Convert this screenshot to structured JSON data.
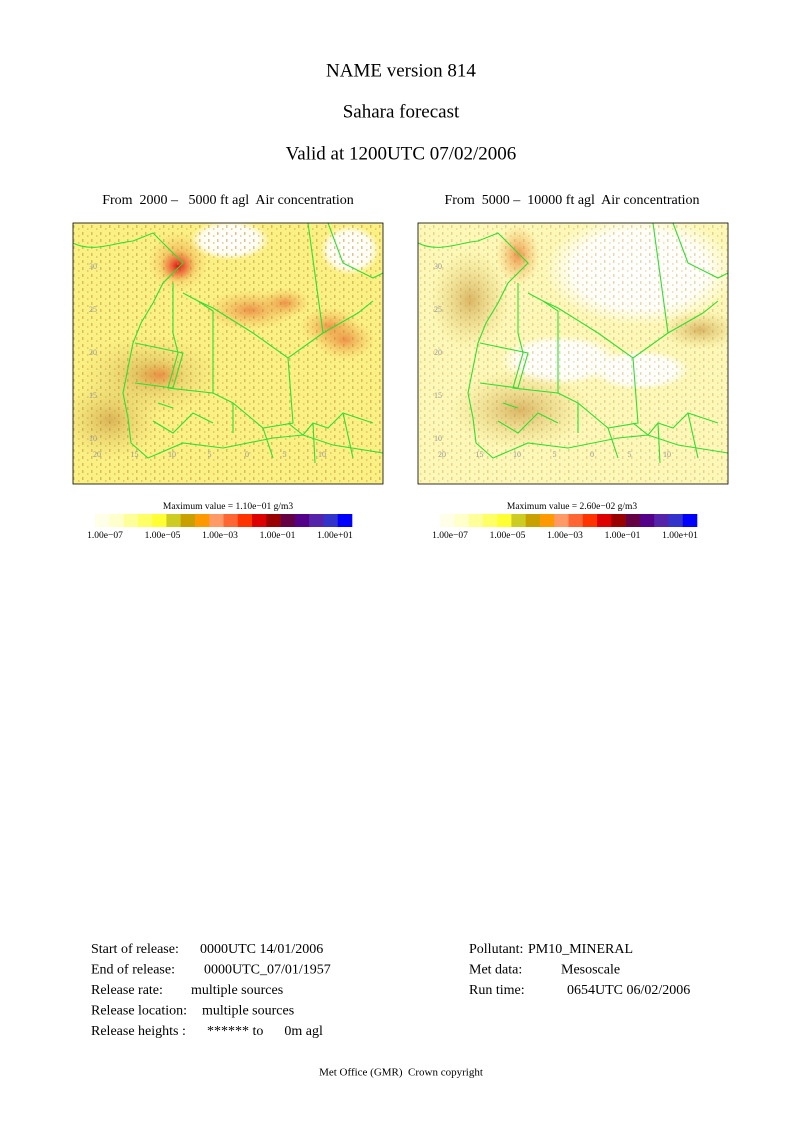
{
  "header": {
    "title": "NAME version 814",
    "subtitle": "Sahara forecast",
    "valid": "Valid at 1200UTC 07/02/2006"
  },
  "colorbar_colors": [
    "#ffffe8",
    "#ffffcc",
    "#ffff99",
    "#ffff66",
    "#ffff33",
    "#cccc22",
    "#c8a000",
    "#ff9900",
    "#ff9966",
    "#ff6633",
    "#ff3300",
    "#dd0000",
    "#990000",
    "#660044",
    "#550088",
    "#5522aa",
    "#3333cc",
    "#0000ff"
  ],
  "panels": [
    {
      "title": "From  2000 –   5000 ft agl  Air concentration",
      "max_value": "Maximum value = 1.10e−01 g/m3",
      "colorbar_labels": [
        "1.00e−07",
        "1.00e−05",
        "1.00e−03",
        "1.00e−01",
        "1.00e+01"
      ],
      "lat_labels": [
        "30",
        "25",
        "20",
        "15",
        "10"
      ],
      "lon_labels": [
        "20",
        "15",
        "10",
        "5",
        "0",
        "5",
        "10"
      ]
    },
    {
      "title": "From  5000 –  10000 ft agl  Air concentration",
      "max_value": "Maximum value = 2.60e−02 g/m3",
      "colorbar_labels": [
        "1.00e−07",
        "1.00e−05",
        "1.00e−03",
        "1.00e−01",
        "1.00e+01"
      ],
      "lat_labels": [
        "30",
        "25",
        "20",
        "15",
        "10"
      ],
      "lon_labels": [
        "20",
        "15",
        "10",
        "5",
        "0",
        "5",
        "10"
      ]
    }
  ],
  "footer": {
    "release": [
      {
        "label": "Start of release:",
        "value": "0000UTC 14/01/2006"
      },
      {
        "label": "End of release:",
        "value": "0000UTC_07/01/1957"
      },
      {
        "label": "Release rate:",
        "value": "multiple sources"
      },
      {
        "label": "Release location:",
        "value": "multiple sources"
      },
      {
        "label": "Release heights :",
        "value": "****** to      0m agl"
      }
    ],
    "met": [
      {
        "label": "Pollutant:",
        "value": "PM10_MINERAL"
      },
      {
        "label": "Met data:",
        "value": "Mesoscale"
      },
      {
        "label": "Run time:",
        "value": "0654UTC 06/02/2006"
      }
    ],
    "copyright": "Met Office (GMR)  Crown copyright"
  }
}
